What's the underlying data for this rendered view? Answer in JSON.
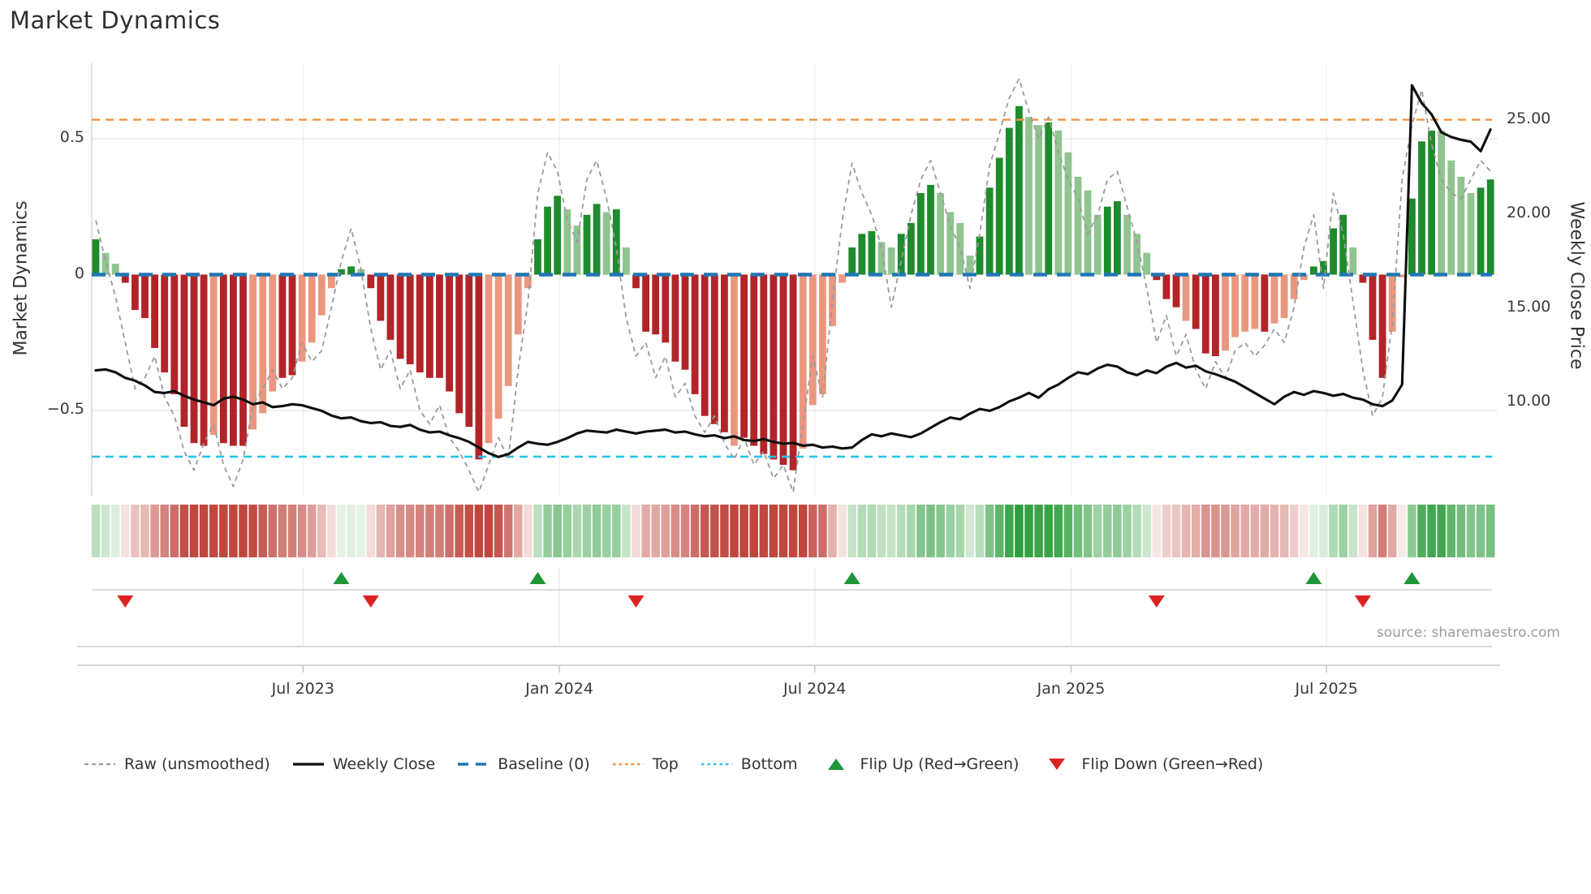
{
  "title": "Market Dynamics",
  "source": "source: sharemaestro.com",
  "axes": {
    "left_label": "Market Dynamics",
    "right_label": "Weekly Close Price",
    "left_ticks": [
      {
        "label": "0.5",
        "value": 0.5
      },
      {
        "label": "0",
        "value": 0.0
      },
      {
        "label": "−0.5",
        "value": -0.5
      }
    ],
    "right_ticks": [
      {
        "label": "25.00",
        "value": 25
      },
      {
        "label": "20.00",
        "value": 20
      },
      {
        "label": "15.00",
        "value": 15
      },
      {
        "label": "10.00",
        "value": 10
      }
    ],
    "x_ticks": [
      {
        "label": "Jul 2023",
        "week": 21.1
      },
      {
        "label": "Jan 2024",
        "week": 47.2
      },
      {
        "label": "Jul 2024",
        "week": 73.2
      },
      {
        "label": "Jan 2025",
        "week": 99.3
      },
      {
        "label": "Jul 2025",
        "week": 125.3
      }
    ]
  },
  "legend": [
    {
      "label": "Raw (unsmoothed)",
      "type": "dash-gray"
    },
    {
      "label": "Weekly Close",
      "type": "solid-black"
    },
    {
      "label": "Baseline (0)",
      "type": "dash-blue"
    },
    {
      "label": "Top",
      "type": "dot-orange"
    },
    {
      "label": "Bottom",
      "type": "dot-cyan"
    },
    {
      "label": "Flip Up (Red→Green)",
      "type": "tri-up"
    },
    {
      "label": "Flip Down (Green→Red)",
      "type": "tri-down"
    }
  ],
  "colors": {
    "bar_pos_dark": "#1E8B2C",
    "bar_pos_light": "#90C490",
    "bar_neg_dark": "#B22428",
    "bar_neg_light": "#EB9780",
    "raw": "#9A9A9A",
    "price": "#0E0E0E",
    "baseline": "#1F77B4",
    "top": "#F5923D",
    "bottom": "#29C3EA",
    "flip_up": "#1E9638",
    "flip_down": "#DD2222",
    "heat_pos": "#2E9E3E",
    "heat_neg": "#C0463E",
    "heat_pos_pale": "#F0F7EF",
    "heat_neg_pale": "#F9F0EE",
    "grid": "#E8E8E8",
    "spine": "#CFCFCF",
    "axisline": "#C9C9C9",
    "text": "#333333",
    "muted": "#9B9B9B"
  },
  "chart_data": {
    "type": "combo (bar oscillator + line + heatmap strip + flip markers)",
    "title": "Market Dynamics",
    "ylabel_left": "Market Dynamics",
    "ylabel_right": "Weekly Close Price",
    "frequency": "weekly",
    "x_range_labels": [
      "Jul 2023",
      "Jan 2024",
      "Jul 2024",
      "Jan 2025",
      "Jul 2025"
    ],
    "osc_ylim": [
      -0.8,
      0.78
    ],
    "price_ylim": [
      5.0,
      27.5
    ],
    "baseline": 0,
    "top_threshold": 0.57,
    "bottom_threshold": -0.67,
    "bars": {
      "name": "Market Dynamics oscillator",
      "shades": "dlldddddddddldddllldd llllddlddddddddddddllllldddllddldldddddddddd ldddd ddlllllddd lldddd lllldddddlldlllllddllldddldddlllldlllldddd ldddlldddlllldd",
      "shades_clean": "dlldddddddddldddllldd",
      "values": [
        0.13,
        0.08,
        0.04,
        -0.03,
        -0.13,
        -0.16,
        -0.27,
        -0.36,
        -0.44,
        -0.56,
        -0.62,
        -0.63,
        -0.59,
        -0.62,
        -0.63,
        -0.63,
        -0.57,
        -0.51,
        -0.43,
        -0.38,
        -0.37,
        -0.32,
        -0.25,
        -0.15,
        -0.05,
        0.02,
        0.03,
        0.02,
        -0.05,
        -0.17,
        -0.24,
        -0.31,
        -0.33,
        -0.36,
        -0.38,
        -0.38,
        -0.43,
        -0.51,
        -0.56,
        -0.68,
        -0.62,
        -0.53,
        -0.41,
        -0.22,
        -0.05,
        0.13,
        0.25,
        0.29,
        0.24,
        0.18,
        0.22,
        0.26,
        0.23,
        0.24,
        0.1,
        -0.05,
        -0.21,
        -0.22,
        -0.25,
        -0.32,
        -0.35,
        -0.44,
        -0.52,
        -0.55,
        -0.58,
        -0.63,
        -0.6,
        -0.63,
        -0.66,
        -0.68,
        -0.7,
        -0.72,
        -0.64,
        -0.48,
        -0.44,
        -0.19,
        -0.03,
        0.1,
        0.15,
        0.16,
        0.12,
        0.1,
        0.15,
        0.19,
        0.3,
        0.33,
        0.3,
        0.23,
        0.19,
        0.07,
        0.14,
        0.32,
        0.43,
        0.54,
        0.62,
        0.58,
        0.55,
        0.56,
        0.53,
        0.45,
        0.36,
        0.31,
        0.22,
        0.25,
        0.27,
        0.22,
        0.15,
        0.08,
        -0.02,
        -0.09,
        -0.12,
        -0.17,
        -0.2,
        -0.29,
        -0.3,
        -0.28,
        -0.23,
        -0.21,
        -0.2,
        -0.21,
        -0.18,
        -0.16,
        -0.09,
        -0.02,
        0.03,
        0.05,
        0.17,
        0.22,
        0.1,
        -0.03,
        -0.24,
        -0.38,
        -0.21,
        -0.01,
        0.28,
        0.49,
        0.53,
        0.53,
        0.42,
        0.36,
        0.3,
        0.32,
        0.35
      ],
      "shade_string": "dlldddddddddldddllldddllllddlddddddddddddllllldddllddldldddddddddlddddddlllllbddlldddlldddd"
    },
    "bar_shades": "dlldddddddddldddllldddllllddlddddddddddddllllldddllddldldddddddddldddddddlllllddd lldddd llll",
    "shade_array": "dlldddddddddldddllldddllllddlddddddddddddllllldddllddldldddddddddlddddddlllllddddllddddlllldddddlldlllllddllldddldddlllldlllldddd lddd lldddllll dd",
    "raw": {
      "name": "Raw (unsmoothed)",
      "values": [
        0.2,
        0.05,
        -0.08,
        -0.25,
        -0.42,
        -0.38,
        -0.3,
        -0.45,
        -0.52,
        -0.65,
        -0.72,
        -0.62,
        -0.55,
        -0.7,
        -0.78,
        -0.68,
        -0.48,
        -0.42,
        -0.35,
        -0.42,
        -0.38,
        -0.25,
        -0.32,
        -0.28,
        -0.12,
        0.05,
        0.17,
        0.02,
        -0.2,
        -0.35,
        -0.28,
        -0.42,
        -0.35,
        -0.5,
        -0.55,
        -0.48,
        -0.6,
        -0.65,
        -0.72,
        -0.8,
        -0.7,
        -0.6,
        -0.68,
        -0.35,
        -0.1,
        0.3,
        0.45,
        0.38,
        0.2,
        0.12,
        0.35,
        0.42,
        0.28,
        0.1,
        -0.16,
        -0.3,
        -0.25,
        -0.38,
        -0.3,
        -0.45,
        -0.4,
        -0.52,
        -0.58,
        -0.52,
        -0.62,
        -0.68,
        -0.6,
        -0.7,
        -0.65,
        -0.75,
        -0.7,
        -0.8,
        -0.55,
        -0.3,
        -0.45,
        -0.1,
        0.2,
        0.41,
        0.3,
        0.22,
        0.1,
        -0.12,
        0.05,
        0.22,
        0.35,
        0.42,
        0.3,
        0.18,
        0.1,
        -0.05,
        0.15,
        0.4,
        0.52,
        0.65,
        0.72,
        0.6,
        0.5,
        0.58,
        0.45,
        0.35,
        0.28,
        0.15,
        0.22,
        0.35,
        0.38,
        0.25,
        0.12,
        -0.05,
        -0.25,
        -0.15,
        -0.3,
        -0.22,
        -0.35,
        -0.42,
        -0.32,
        -0.38,
        -0.28,
        -0.25,
        -0.3,
        -0.26,
        -0.2,
        -0.25,
        -0.12,
        0.1,
        0.22,
        -0.05,
        0.3,
        0.15,
        -0.1,
        -0.35,
        -0.52,
        -0.45,
        -0.18,
        0.35,
        0.55,
        0.68,
        0.48,
        0.35,
        0.3,
        0.28,
        0.35,
        0.42,
        0.38
      ]
    },
    "price": {
      "name": "Weekly Close",
      "axis": "right",
      "values": [
        11.7,
        11.75,
        11.6,
        11.3,
        11.15,
        10.9,
        10.55,
        10.5,
        10.6,
        10.35,
        10.15,
        10.0,
        9.85,
        10.2,
        10.3,
        10.15,
        9.9,
        10.0,
        9.75,
        9.8,
        9.9,
        9.85,
        9.7,
        9.55,
        9.3,
        9.15,
        9.2,
        9.0,
        8.9,
        8.95,
        8.75,
        8.7,
        8.8,
        8.55,
        8.4,
        8.45,
        8.25,
        8.1,
        7.9,
        7.6,
        7.3,
        7.1,
        7.25,
        7.6,
        7.9,
        7.8,
        7.75,
        7.9,
        8.1,
        8.35,
        8.5,
        8.45,
        8.4,
        8.55,
        8.45,
        8.35,
        8.45,
        8.5,
        8.55,
        8.4,
        8.45,
        8.3,
        8.2,
        8.25,
        8.1,
        8.2,
        8.0,
        7.95,
        8.05,
        7.9,
        7.8,
        7.85,
        7.7,
        7.75,
        7.6,
        7.65,
        7.55,
        7.6,
        8.0,
        8.3,
        8.2,
        8.35,
        8.25,
        8.15,
        8.35,
        8.65,
        8.95,
        9.2,
        9.1,
        9.4,
        9.65,
        9.55,
        9.75,
        10.05,
        10.25,
        10.5,
        10.25,
        10.7,
        10.95,
        11.3,
        11.6,
        11.5,
        11.8,
        12.0,
        11.9,
        11.6,
        11.45,
        11.7,
        11.55,
        11.9,
        12.1,
        11.85,
        11.95,
        11.65,
        11.5,
        11.3,
        11.1,
        10.8,
        10.5,
        10.2,
        9.9,
        10.3,
        10.55,
        10.4,
        10.6,
        10.5,
        10.35,
        10.45,
        10.25,
        10.15,
        9.9,
        9.8,
        10.1,
        10.95,
        26.85,
        25.9,
        25.3,
        24.35,
        24.1,
        23.95,
        23.85,
        23.35,
        24.5
      ]
    },
    "flip_up_idx": [
      25,
      45,
      77,
      124,
      134
    ],
    "flip_down_idx": [
      3,
      28,
      55,
      108,
      129
    ],
    "legend_entries": [
      "Raw (unsmoothed)",
      "Weekly Close",
      "Baseline (0)",
      "Top",
      "Bottom",
      "Flip Up (Red→Green)",
      "Flip Down (Green→Red)"
    ]
  }
}
